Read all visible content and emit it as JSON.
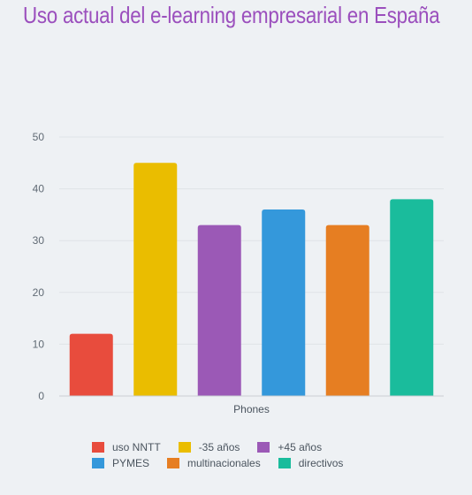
{
  "colors": {
    "title": "#9b4fbd",
    "grid": "#dfe3e7",
    "axis": "#c9ced3"
  },
  "chart_data": {
    "type": "bar",
    "title": "Uso actual del e-learning empresarial en España",
    "xlabel": "Phones",
    "ylabel": "",
    "categories": [
      "Phones"
    ],
    "ylim": [
      0,
      50
    ],
    "yticks": [
      0,
      10,
      20,
      30,
      40,
      50
    ],
    "grid": true,
    "legend_position": "bottom",
    "series": [
      {
        "name": "uso NNTT",
        "values": [
          12
        ],
        "color": "#e84c3d"
      },
      {
        "name": "-35 años",
        "values": [
          45
        ],
        "color": "#eabd00"
      },
      {
        "name": "+45 años",
        "values": [
          33
        ],
        "color": "#9b59b6"
      },
      {
        "name": "PYMES",
        "values": [
          36
        ],
        "color": "#3498db"
      },
      {
        "name": "multinacionales",
        "values": [
          33
        ],
        "color": "#e67e22"
      },
      {
        "name": "directivos",
        "values": [
          38
        ],
        "color": "#1abc9c"
      }
    ]
  }
}
